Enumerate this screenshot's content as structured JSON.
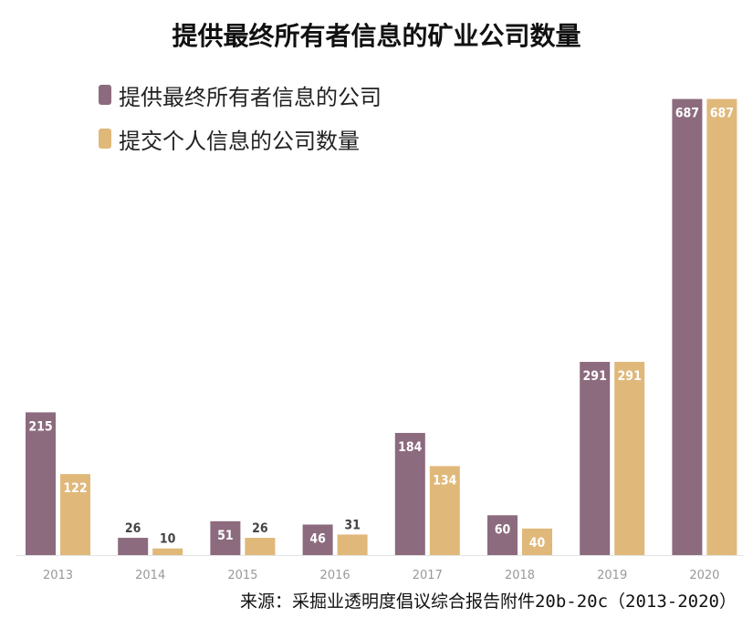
{
  "chart_data": {
    "type": "bar",
    "title": "提供最终所有者信息的矿业公司数量",
    "categories": [
      "2013",
      "2014",
      "2015",
      "2016",
      "2017",
      "2018",
      "2019",
      "2020"
    ],
    "series": [
      {
        "name": "提供最终所有者信息的公司",
        "color": "#8c6b7e",
        "values": [
          215,
          26,
          51,
          46,
          184,
          60,
          291,
          687
        ]
      },
      {
        "name": "提交个人信息的公司数量",
        "color": "#e0b87a",
        "values": [
          122,
          10,
          26,
          31,
          134,
          40,
          291,
          687
        ]
      }
    ],
    "ylim": [
      0,
      740
    ],
    "grid": false,
    "legend_position": "top-left",
    "source": "来源：采掘业透明度倡议综合报告附件20b-20c（2013-2020）"
  }
}
